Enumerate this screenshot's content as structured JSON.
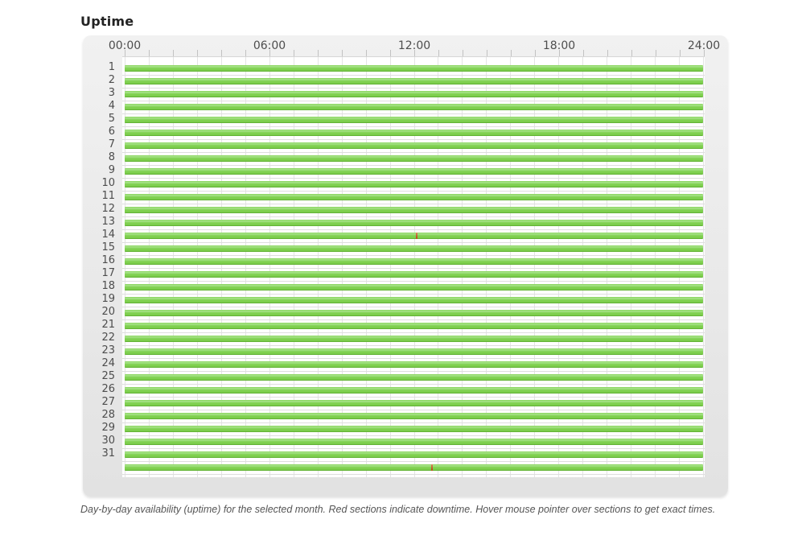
{
  "title": "Uptime",
  "caption": "Day-by-day availability (uptime) for the selected month. Red sections indicate downtime. Hover mouse pointer over sections to get exact times.",
  "colors": {
    "uptime_green": "#7fd04f",
    "uptime_green_light": "#a9e48d",
    "uptime_green_dark": "#5aa92c",
    "downtime_red": "#bf5124",
    "downtime_red_light": "#d8895e",
    "panel_top": "#f1f1f1",
    "panel_bottom": "#e2e2e2",
    "grid_line": "#e4e4e4",
    "row_grid_line": "#dedede",
    "tick": "#c2c2c2",
    "text_primary": "#222222",
    "text_secondary": "#4d4d4d",
    "plot_bg": "#ffffff"
  },
  "chart_data": {
    "type": "gantt",
    "title": "Uptime",
    "x_axis": {
      "unit": "time of day",
      "range_hours": [
        0,
        24
      ],
      "label_ticks": [
        "00:00",
        "06:00",
        "12:00",
        "18:00",
        "24:00"
      ],
      "label_tick_every_hours": 6,
      "minor_tick_every_hours": 1
    },
    "y_axis": {
      "row_labels": [
        "1",
        "2",
        "3",
        "4",
        "5",
        "6",
        "7",
        "8",
        "9",
        "10",
        "11",
        "12",
        "13",
        "14",
        "15",
        "16",
        "17",
        "18",
        "19",
        "20",
        "21",
        "22",
        "23",
        "24",
        "25",
        "26",
        "27",
        "28",
        "29",
        "30",
        "31",
        ""
      ]
    },
    "grid": true,
    "legend_position": "none",
    "rows_default_segment": {
      "status": "up",
      "start": "00:00",
      "end": "24:00"
    },
    "downtime_events": [
      {
        "row_label": "14",
        "row_index": 13,
        "start_hour": 12.1,
        "end_hour": 12.18,
        "approx_time": "12:06"
      },
      {
        "row_label": "",
        "row_index": 31,
        "start_hour": 12.73,
        "end_hour": 12.81,
        "approx_time": "12:44"
      }
    ]
  }
}
